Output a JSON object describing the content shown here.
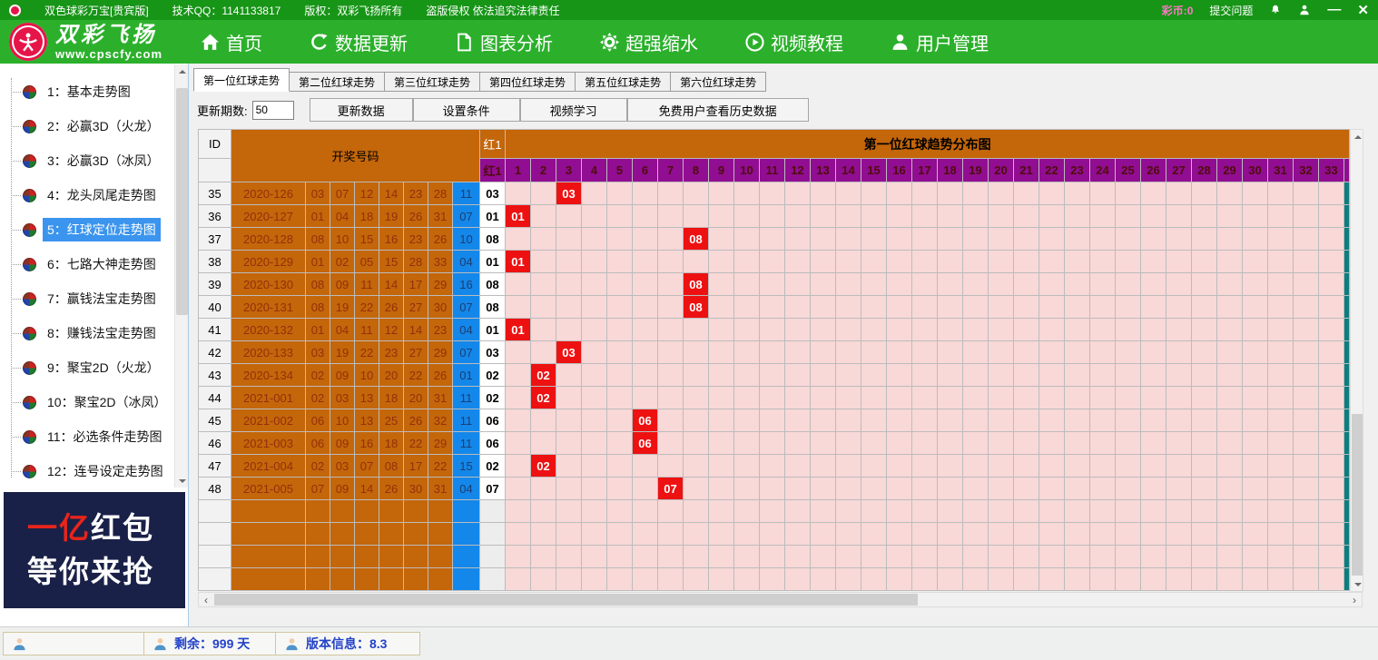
{
  "title_bar": {
    "app_title": "双色球彩万宝[贵宾版]",
    "qq": "技术QQ：1141133817",
    "copyright": "版权：双彩飞扬所有",
    "warning": "盗版侵权 依法追究法律责任",
    "coin_label": "彩币:0",
    "submit_label": "提交问题",
    "minimize_glyph": "—",
    "close_glyph": "✕"
  },
  "nav": {
    "brand": "双彩飞扬",
    "site": "www.cpscfy.com",
    "items": [
      {
        "id": "home",
        "icon": "home-icon",
        "label": "首页"
      },
      {
        "id": "update",
        "icon": "refresh-icon",
        "label": "数据更新"
      },
      {
        "id": "charts",
        "icon": "document-icon",
        "label": "图表分析"
      },
      {
        "id": "shrink",
        "icon": "gear-icon",
        "label": "超强缩水"
      },
      {
        "id": "video",
        "icon": "play-icon",
        "label": "视频教程"
      },
      {
        "id": "users",
        "icon": "user-icon",
        "label": "用户管理"
      }
    ]
  },
  "sidebar": {
    "selected_index": 4,
    "items": [
      {
        "label": "1：基本走势图"
      },
      {
        "label": "2：必赢3D（火龙）"
      },
      {
        "label": "3：必赢3D（冰凤）"
      },
      {
        "label": "4：龙头凤尾走势图"
      },
      {
        "label": "5：红球定位走势图"
      },
      {
        "label": "6：七路大神走势图"
      },
      {
        "label": "7：赢钱法宝走势图"
      },
      {
        "label": "8：赚钱法宝走势图"
      },
      {
        "label": "9：聚宝2D（火龙）"
      },
      {
        "label": "10：聚宝2D（冰凤）"
      },
      {
        "label": "11：必选条件走势图"
      },
      {
        "label": "12：连号设定走势图"
      }
    ],
    "ad": {
      "line1_red": "一亿",
      "line1_white": "红包",
      "line2": "等你来抢"
    }
  },
  "tabs": {
    "active_index": 0,
    "labels": [
      "第一位红球走势",
      "第二位红球走势",
      "第三位红球走势",
      "第四位红球走势",
      "第五位红球走势",
      "第六位红球走势"
    ]
  },
  "controls": {
    "period_label": "更新期数:",
    "period_value": "50",
    "buttons": [
      "更新数据",
      "设置条件",
      "视频学习",
      "免费用户查看历史数据"
    ]
  },
  "table": {
    "id_header": "ID",
    "draw_header": "开奖号码",
    "red1_header": "红1",
    "chart_header": "第一位红球趋势分布图",
    "chart_sub_first": "红1",
    "chart_col_start": 1,
    "chart_col_end": 33,
    "empty_rows": 4,
    "rows": [
      {
        "id": "35",
        "period": "2020-126",
        "reds": [
          "03",
          "07",
          "12",
          "14",
          "23",
          "28"
        ],
        "blue": "11",
        "red1": "03"
      },
      {
        "id": "36",
        "period": "2020-127",
        "reds": [
          "01",
          "04",
          "18",
          "19",
          "26",
          "31"
        ],
        "blue": "07",
        "red1": "01"
      },
      {
        "id": "37",
        "period": "2020-128",
        "reds": [
          "08",
          "10",
          "15",
          "16",
          "23",
          "26"
        ],
        "blue": "10",
        "red1": "08"
      },
      {
        "id": "38",
        "period": "2020-129",
        "reds": [
          "01",
          "02",
          "05",
          "15",
          "28",
          "33"
        ],
        "blue": "04",
        "red1": "01"
      },
      {
        "id": "39",
        "period": "2020-130",
        "reds": [
          "08",
          "09",
          "11",
          "14",
          "17",
          "29"
        ],
        "blue": "16",
        "red1": "08"
      },
      {
        "id": "40",
        "period": "2020-131",
        "reds": [
          "08",
          "19",
          "22",
          "26",
          "27",
          "30"
        ],
        "blue": "07",
        "red1": "08"
      },
      {
        "id": "41",
        "period": "2020-132",
        "reds": [
          "01",
          "04",
          "11",
          "12",
          "14",
          "23"
        ],
        "blue": "04",
        "red1": "01"
      },
      {
        "id": "42",
        "period": "2020-133",
        "reds": [
          "03",
          "19",
          "22",
          "23",
          "27",
          "29"
        ],
        "blue": "07",
        "red1": "03"
      },
      {
        "id": "43",
        "period": "2020-134",
        "reds": [
          "02",
          "09",
          "10",
          "20",
          "22",
          "26"
        ],
        "blue": "01",
        "red1": "02"
      },
      {
        "id": "44",
        "period": "2021-001",
        "reds": [
          "02",
          "03",
          "13",
          "18",
          "20",
          "31"
        ],
        "blue": "11",
        "red1": "02"
      },
      {
        "id": "45",
        "period": "2021-002",
        "reds": [
          "06",
          "10",
          "13",
          "25",
          "26",
          "32"
        ],
        "blue": "11",
        "red1": "06"
      },
      {
        "id": "46",
        "period": "2021-003",
        "reds": [
          "06",
          "09",
          "16",
          "18",
          "22",
          "29"
        ],
        "blue": "11",
        "red1": "06"
      },
      {
        "id": "47",
        "period": "2021-004",
        "reds": [
          "02",
          "03",
          "07",
          "08",
          "17",
          "22"
        ],
        "blue": "15",
        "red1": "02"
      },
      {
        "id": "48",
        "period": "2021-005",
        "reds": [
          "07",
          "09",
          "14",
          "26",
          "30",
          "31"
        ],
        "blue": "04",
        "red1": "07"
      }
    ]
  },
  "status_bar": {
    "remaining": "剩余：999 天",
    "version": "版本信息：8.3"
  },
  "colors": {
    "titlebar_green": "#179517",
    "navbar_green": "#2cb02c",
    "selection_blue": "#3b95ee",
    "table_orange": "#c4660a",
    "ball_blue": "#1487ea",
    "chart_pink": "#f9d8d8",
    "hit_red": "#ee1111",
    "header_purple": "#910d91",
    "teal_edge": "#0e7d7d",
    "ad_navy": "#1a2148",
    "coin_pink": "#ff77c8",
    "status_blue": "#2342c8"
  }
}
